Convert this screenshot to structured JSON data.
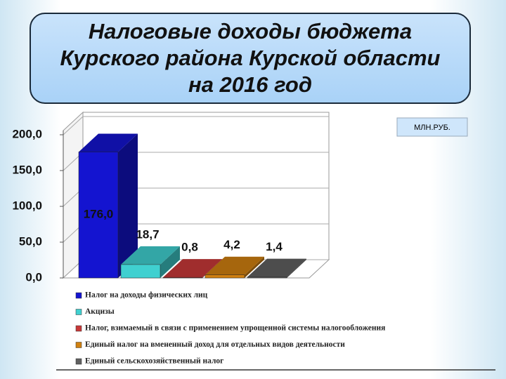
{
  "chart_data": {
    "type": "bar3d",
    "title": "Налоговые доходы бюджета Курского района Курской области на 2016 год",
    "unit": "МЛН.РУБ.",
    "categories": [
      "Налог на доходы физических лиц",
      "Акцизы",
      "Налог, взимаемый в связи с применением упрощенной системы налогообложения",
      "Единый налог на вмененный доход для отдельных видов деятельности",
      "Единый сельскохозяйственный налог"
    ],
    "values": [
      176.0,
      18.7,
      0.8,
      4.2,
      1.4
    ],
    "value_labels": [
      "176,0",
      "18,7",
      "0,8",
      "4,2",
      "1,4"
    ],
    "colors": [
      "#1414d0",
      "#40d0d0",
      "#c83838",
      "#d08010",
      "#606060"
    ],
    "ylim": [
      0,
      200
    ],
    "yticks": [
      {
        "value": 0,
        "label": "0,0"
      },
      {
        "value": 50,
        "label": "50,0"
      },
      {
        "value": 100,
        "label": "100,0"
      },
      {
        "value": 150,
        "label": "150,0"
      },
      {
        "value": 200,
        "label": "200,0"
      }
    ],
    "grid": true
  }
}
